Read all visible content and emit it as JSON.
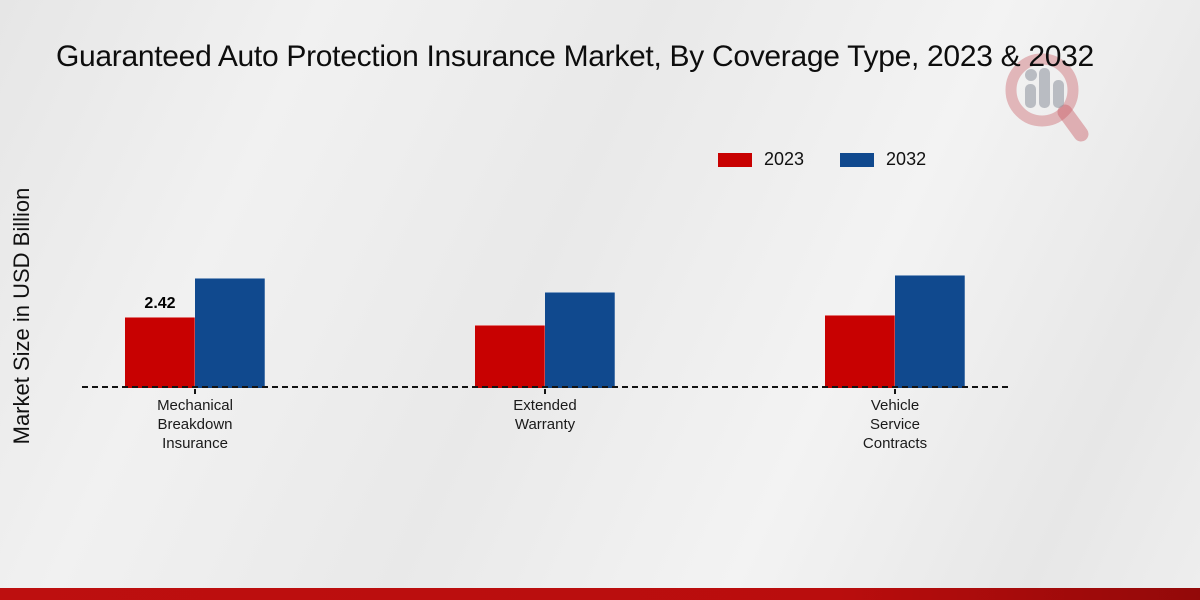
{
  "title": "Guaranteed Auto Protection Insurance Market, By Coverage Type, 2023 & 2032",
  "y_axis_label": "Market Size in USD Billion",
  "legend": [
    {
      "label": "2023",
      "color": "#c80101"
    },
    {
      "label": "2032",
      "color": "#10498e"
    }
  ],
  "colors": {
    "bar_2023": "#c80101",
    "bar_2032": "#10498e",
    "footer_strip": "#b90d0d",
    "baseline": "#141414",
    "watermark_pink": "rgba(201,86,95,0.38)",
    "watermark_grey": "rgba(148,153,163,0.55)"
  },
  "watermark_icon": "magnifier-bar-chart-logo",
  "chart_data": {
    "type": "bar",
    "categories": [
      "Mechanical\nBreakdown\nInsurance",
      "Extended\nWarranty",
      "Vehicle\nService\nContracts"
    ],
    "series": [
      {
        "name": "2023",
        "color": "#c80101",
        "values": [
          2.42,
          2.15,
          2.49
        ],
        "labels": [
          "2.42",
          "",
          ""
        ]
      },
      {
        "name": "2032",
        "color": "#10498e",
        "values": [
          3.75,
          3.27,
          3.85
        ],
        "labels": [
          "",
          "",
          ""
        ]
      }
    ],
    "title": "Guaranteed Auto Protection Insurance Market, By Coverage Type, 2023 & 2032",
    "xlabel": "",
    "ylabel": "Market Size in USD Billion",
    "ylim": [
      0,
      8
    ],
    "grid": false,
    "axis_visible": false,
    "baseline_style": "dashed",
    "legend_position": "top-center"
  }
}
